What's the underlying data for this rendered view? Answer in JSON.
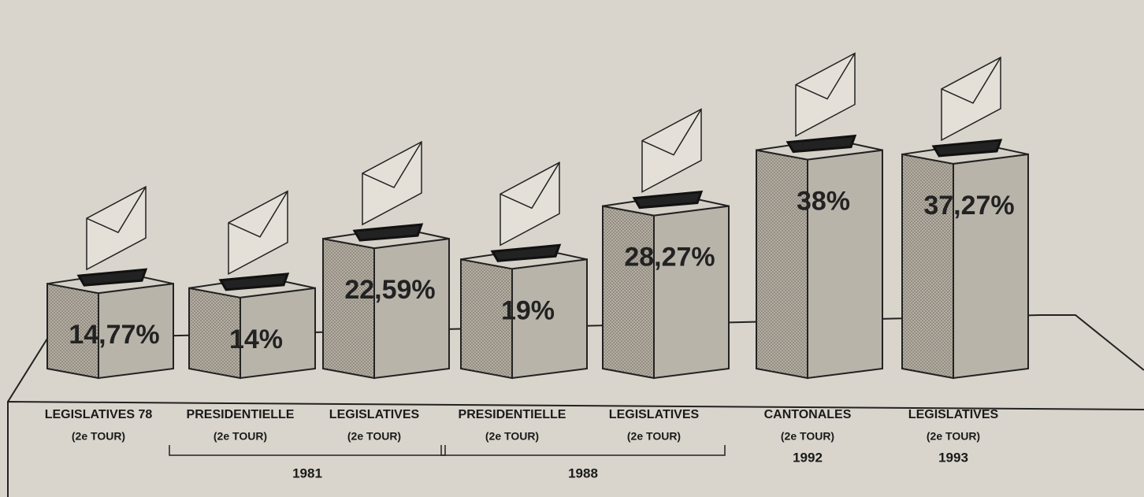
{
  "chart_data": {
    "type": "bar",
    "categories": [
      "LEGISLATIVES 78",
      "PRESIDENTIELLE",
      "LEGISLATIVES",
      "PRESIDENTIELLE",
      "LEGISLATIVES",
      "CANTONALES",
      "LEGISLATIVES"
    ],
    "sublabels": [
      "(2e TOUR)",
      "(2e TOUR)",
      "(2e TOUR)",
      "(2e TOUR)",
      "(2e TOUR)",
      "(2e TOUR)",
      "(2e TOUR)"
    ],
    "years": [
      null,
      "1981",
      "1981",
      "1988",
      "1988",
      "1992",
      "1993"
    ],
    "values": [
      14.77,
      14,
      22.59,
      19,
      28.27,
      38,
      37.27
    ],
    "value_labels": [
      "14,77%",
      "14%",
      "22,59%",
      "19%",
      "28,27%",
      "38%",
      "37,27%"
    ],
    "color": "#b9b4aa"
  }
}
